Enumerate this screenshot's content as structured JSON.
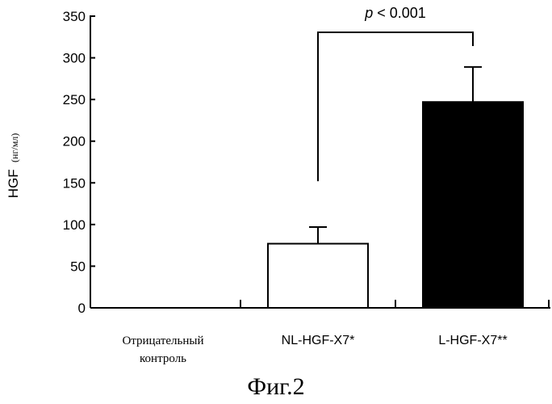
{
  "chart_data": {
    "type": "bar",
    "ylabel_main": "HGF",
    "ylabel_unit": "(нг/мл)",
    "ylim": [
      0,
      350
    ],
    "yticks": [
      0,
      50,
      100,
      150,
      200,
      250,
      300,
      350
    ],
    "categories": [
      {
        "lines": [
          "Отрицательный",
          "контроль"
        ]
      },
      {
        "lines": [
          "NL-HGF-X7*"
        ]
      },
      {
        "lines": [
          "L-HGF-X7**"
        ]
      }
    ],
    "values": [
      0,
      77,
      247
    ],
    "errors": [
      0,
      20,
      42
    ],
    "bar_colors": [
      "#ffffff",
      "#ffffff",
      "#000000"
    ],
    "significance": {
      "between": [
        1,
        2
      ],
      "label_italic": "p",
      "label_rest": " < 0.001"
    },
    "grid": false
  },
  "caption": "Фиг.2"
}
